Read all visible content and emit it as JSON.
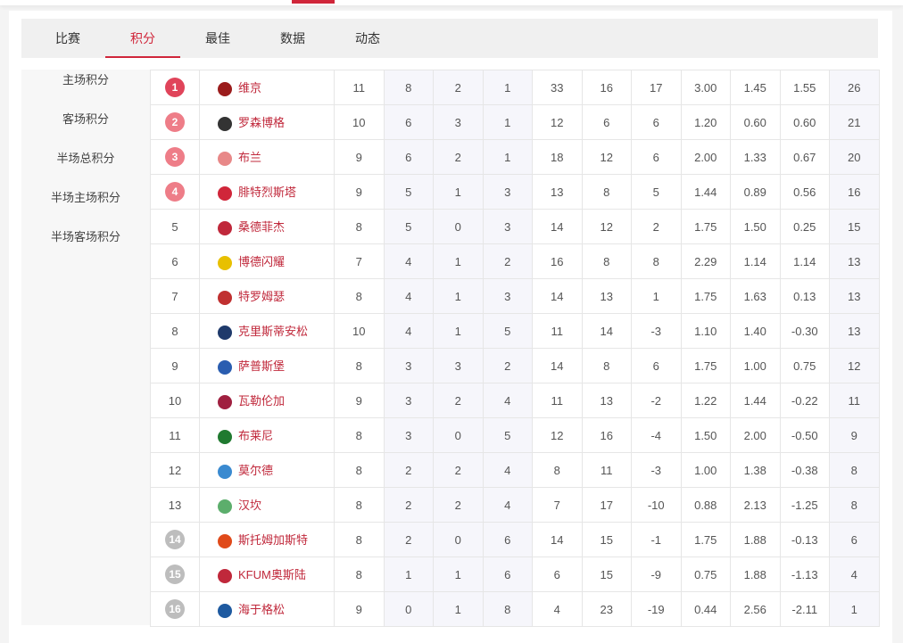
{
  "tabs": [
    "比赛",
    "积分",
    "最佳",
    "数据",
    "动态"
  ],
  "active_tab": 1,
  "side_menu": [
    "主场积分",
    "客场积分",
    "半场总积分",
    "半场主场积分",
    "半场客场积分"
  ],
  "colors": {
    "accent": "#d0263a",
    "rank_top1": "#e0445a",
    "rank_top": "#ee7d88",
    "rank_bottom": "#bdbdbd"
  },
  "rows": [
    [
      "1",
      "维京",
      "11",
      "8",
      "2",
      "1",
      "33",
      "16",
      "17",
      "3.00",
      "1.45",
      "1.55",
      "26",
      "#9b1c1c"
    ],
    [
      "2",
      "罗森博格",
      "10",
      "6",
      "3",
      "1",
      "12",
      "6",
      "6",
      "1.20",
      "0.60",
      "0.60",
      "21",
      "#333333"
    ],
    [
      "3",
      "布兰",
      "9",
      "6",
      "2",
      "1",
      "18",
      "12",
      "6",
      "2.00",
      "1.33",
      "0.67",
      "20",
      "#e88888"
    ],
    [
      "4",
      "腓特烈斯塔",
      "9",
      "5",
      "1",
      "3",
      "13",
      "8",
      "5",
      "1.44",
      "0.89",
      "0.56",
      "16",
      "#d0263a"
    ],
    [
      "5",
      "桑德菲杰",
      "8",
      "5",
      "0",
      "3",
      "14",
      "12",
      "2",
      "1.75",
      "1.50",
      "0.25",
      "15",
      "#c0283b"
    ],
    [
      "6",
      "博德闪耀",
      "7",
      "4",
      "1",
      "2",
      "16",
      "8",
      "8",
      "2.29",
      "1.14",
      "1.14",
      "13",
      "#e8c000"
    ],
    [
      "7",
      "特罗姆瑟",
      "8",
      "4",
      "1",
      "3",
      "14",
      "13",
      "1",
      "1.75",
      "1.63",
      "0.13",
      "13",
      "#c03030"
    ],
    [
      "8",
      "克里斯蒂安松",
      "10",
      "4",
      "1",
      "5",
      "11",
      "14",
      "-3",
      "1.10",
      "1.40",
      "-0.30",
      "13",
      "#1f3a6b"
    ],
    [
      "9",
      "萨普斯堡",
      "8",
      "3",
      "3",
      "2",
      "14",
      "8",
      "6",
      "1.75",
      "1.00",
      "0.75",
      "12",
      "#2a5db0"
    ],
    [
      "10",
      "瓦勒伦加",
      "9",
      "3",
      "2",
      "4",
      "11",
      "13",
      "-2",
      "1.22",
      "1.44",
      "-0.22",
      "11",
      "#a02040"
    ],
    [
      "11",
      "布莱尼",
      "8",
      "3",
      "0",
      "5",
      "12",
      "16",
      "-4",
      "1.50",
      "2.00",
      "-0.50",
      "9",
      "#207a30"
    ],
    [
      "12",
      "莫尔德",
      "8",
      "2",
      "2",
      "4",
      "8",
      "11",
      "-3",
      "1.00",
      "1.38",
      "-0.38",
      "8",
      "#3a8ad0"
    ],
    [
      "13",
      "汉坎",
      "8",
      "2",
      "2",
      "4",
      "7",
      "17",
      "-10",
      "0.88",
      "2.13",
      "-1.25",
      "8",
      "#5cae6c"
    ],
    [
      "14",
      "斯托姆加斯特",
      "8",
      "2",
      "0",
      "6",
      "14",
      "15",
      "-1",
      "1.75",
      "1.88",
      "-0.13",
      "6",
      "#e04a1a"
    ],
    [
      "15",
      "KFUM奥斯陆",
      "8",
      "1",
      "1",
      "6",
      "6",
      "15",
      "-9",
      "0.75",
      "1.88",
      "-1.13",
      "4",
      "#c0283b"
    ],
    [
      "16",
      "海于格松",
      "9",
      "0",
      "1",
      "8",
      "4",
      "23",
      "-19",
      "0.44",
      "2.56",
      "-2.11",
      "1",
      "#1e5aa0"
    ]
  ]
}
